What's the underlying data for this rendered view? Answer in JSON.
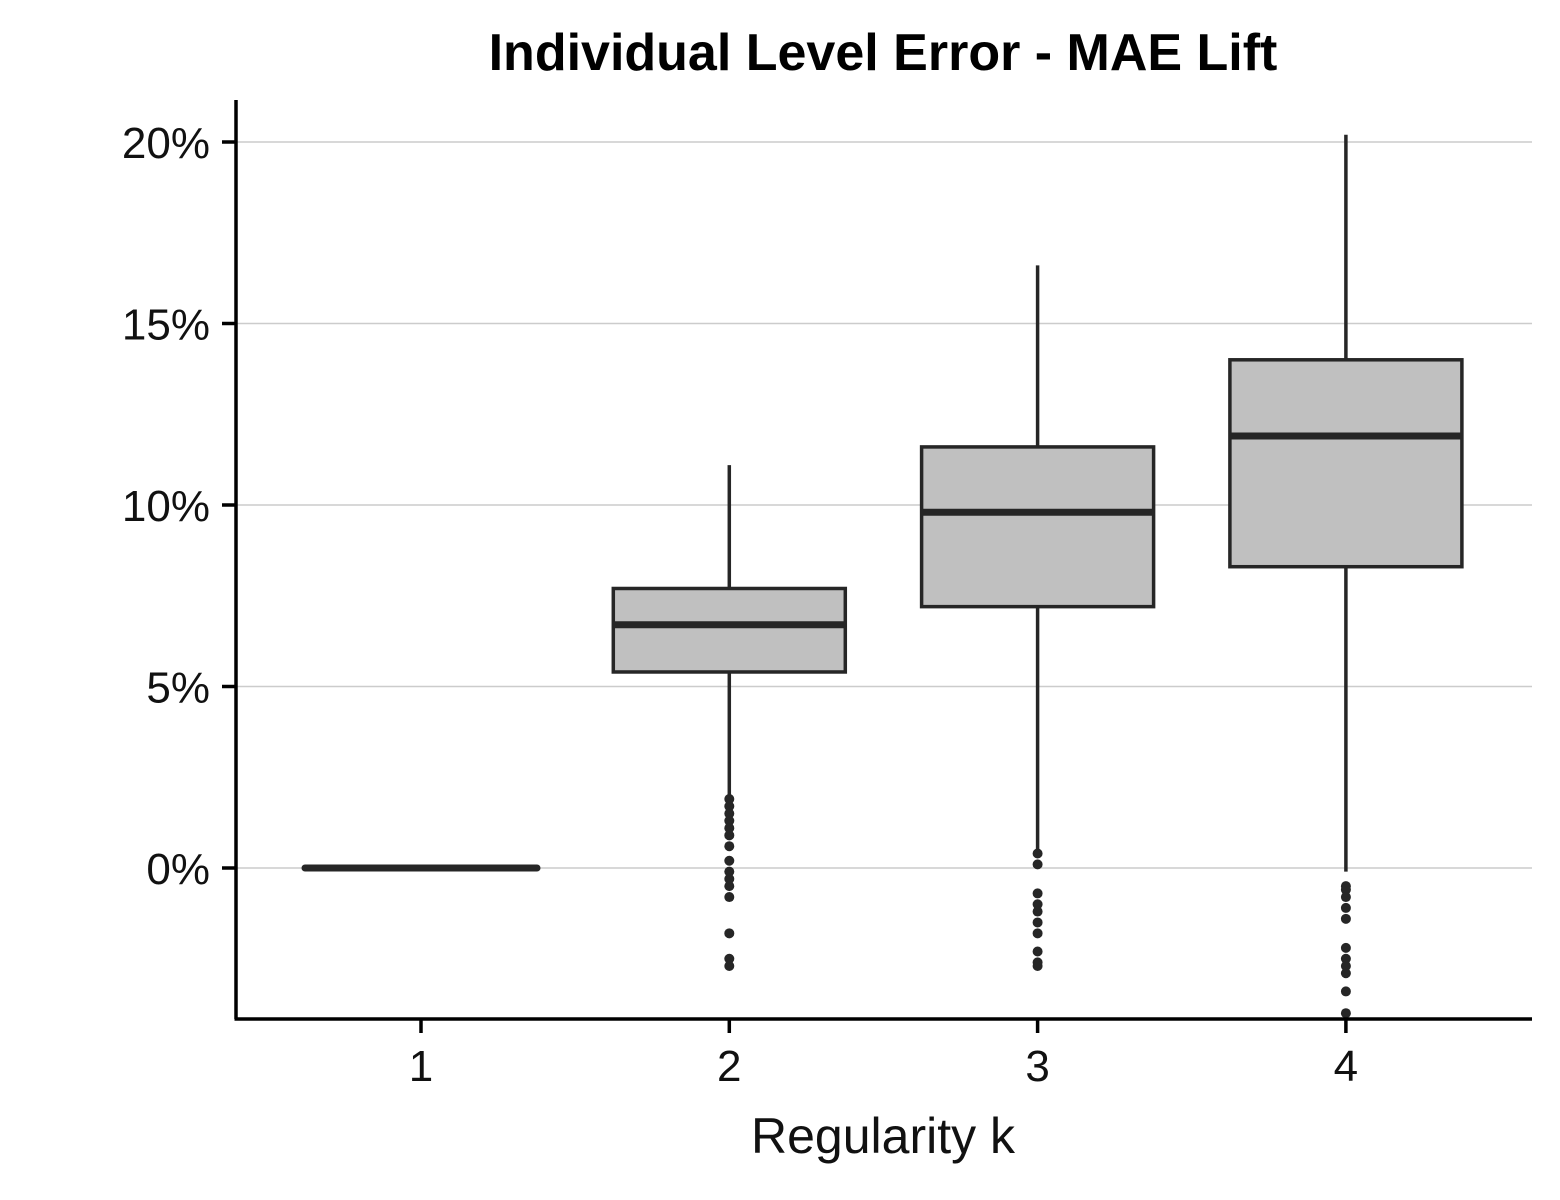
{
  "chart_data": {
    "type": "box",
    "title": "Individual Level Error - MAE Lift",
    "xlabel": "Regularity k",
    "ylabel": "",
    "categories": [
      "1",
      "2",
      "3",
      "4"
    ],
    "y_ticks": [
      0,
      5,
      10,
      15,
      20
    ],
    "y_tick_labels": [
      "0%",
      "5%",
      "10%",
      "15%",
      "20%"
    ],
    "ylim": [
      -4.2,
      21.3
    ],
    "grid": "horizontal",
    "legend": "none",
    "colors": {
      "box_fill": "#c0c0c0",
      "stroke": "#262626",
      "grid": "#cccccc",
      "axis": "#000000"
    },
    "boxes": [
      {
        "category": "1",
        "whisker_low": 0,
        "q1": 0,
        "median": 0,
        "q3": 0,
        "whisker_high": 0,
        "outliers": []
      },
      {
        "category": "2",
        "whisker_low": 2.0,
        "q1": 5.4,
        "median": 6.7,
        "q3": 7.7,
        "whisker_high": 11.1,
        "outliers": [
          1.9,
          1.7,
          1.5,
          1.3,
          1.1,
          0.9,
          0.6,
          0.2,
          -0.1,
          -0.3,
          -0.5,
          -0.8,
          -1.8,
          -2.5,
          -2.7
        ]
      },
      {
        "category": "3",
        "whisker_low": 0.5,
        "q1": 7.2,
        "median": 9.8,
        "q3": 11.6,
        "whisker_high": 16.6,
        "outliers": [
          0.4,
          0.1,
          -0.7,
          -1.0,
          -1.2,
          -1.5,
          -1.8,
          -2.3,
          -2.6,
          -2.7
        ]
      },
      {
        "category": "4",
        "whisker_low": -0.1,
        "q1": 8.3,
        "median": 11.9,
        "q3": 14.0,
        "whisker_high": 20.2,
        "outliers": [
          -0.5,
          -0.6,
          -0.8,
          -1.1,
          -1.4,
          -2.2,
          -2.5,
          -2.7,
          -2.9,
          -3.4,
          -4.0
        ]
      }
    ]
  }
}
